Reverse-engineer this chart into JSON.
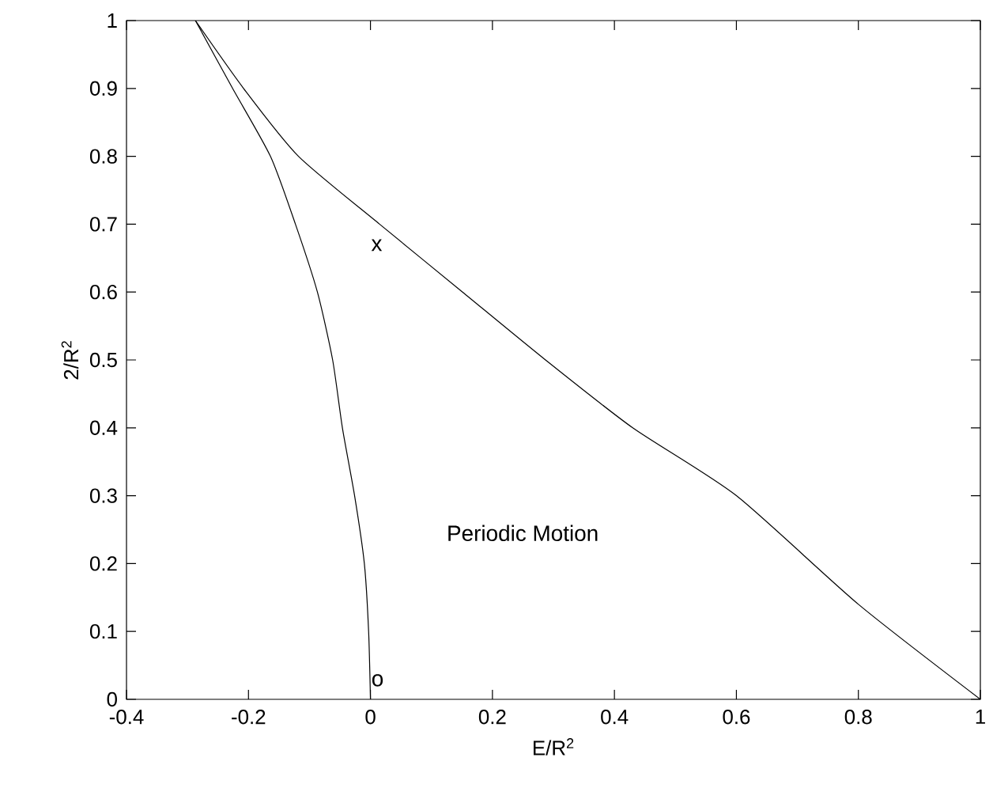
{
  "chart_data": {
    "type": "line",
    "xlabel": "E/R$^{2}$",
    "ylabel": "2/R$^{2}$",
    "xlim": [
      -0.4,
      1
    ],
    "ylim": [
      0,
      1
    ],
    "xticks": [
      -0.4,
      -0.2,
      0,
      0.2,
      0.4,
      0.6,
      0.8,
      1
    ],
    "yticks": [
      0,
      0.1,
      0.2,
      0.3,
      0.4,
      0.5,
      0.6,
      0.7,
      0.8,
      0.9,
      1
    ],
    "marker": "none",
    "line_style": "solid",
    "series": [
      {
        "color": "#000000",
        "x": [
          -0.287,
          -0.208,
          -0.118,
          0.015,
          0.151,
          0.287,
          0.43,
          0.6,
          0.8,
          1
        ],
        "values": [
          1,
          0.9,
          0.8,
          0.7,
          0.6,
          0.5,
          0.4,
          0.3,
          0.14,
          0
        ]
      },
      {
        "color": "#000000",
        "x": [
          -0.287,
          -0.226,
          -0.164,
          -0.123,
          -0.087,
          -0.062,
          -0.046,
          -0.026,
          -0.01,
          -0.003,
          0
        ],
        "values": [
          1,
          0.9,
          0.8,
          0.7,
          0.6,
          0.5,
          0.4,
          0.3,
          0.2,
          0.1,
          0
        ]
      }
    ],
    "annotations": [
      "x",
      "o",
      "Periodic Motion"
    ]
  }
}
